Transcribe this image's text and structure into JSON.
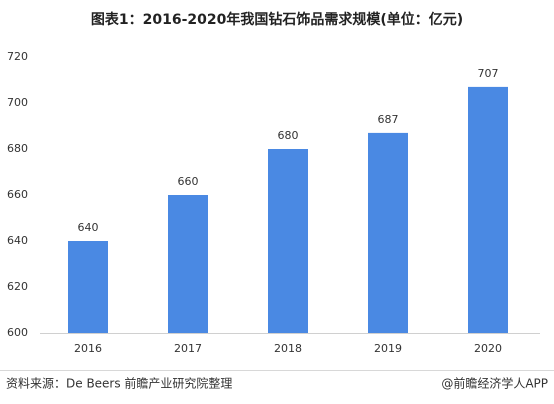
{
  "chart_data": {
    "type": "bar",
    "title": "图表1：2016-2020年我国钻石饰品需求规模(单位：亿元)",
    "categories": [
      "2016",
      "2017",
      "2018",
      "2019",
      "2020"
    ],
    "values": [
      640,
      660,
      680,
      687,
      707
    ],
    "color": "#4a89e3",
    "ylim": [
      600,
      720
    ],
    "yticks": [
      600,
      620,
      640,
      660,
      680,
      700,
      720
    ],
    "grid": false,
    "source": "资料来源：De Beers 前瞻产业研究院整理",
    "credit": "@前瞻经济学人APP"
  }
}
